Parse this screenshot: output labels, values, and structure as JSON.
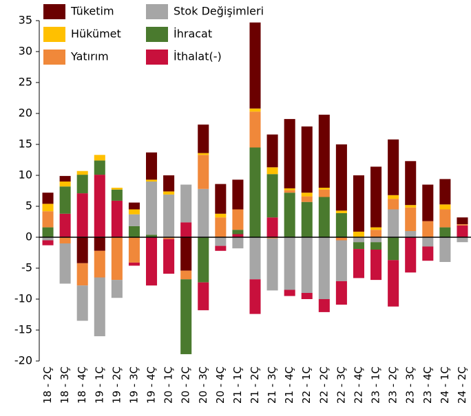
{
  "chart_data": {
    "type": "stacked_bar",
    "categories": [
      "18 - 2Ç",
      "18 - 3Ç",
      "18 - 4Ç",
      "19 - 1Ç",
      "19 - 2Ç",
      "19 - 3Ç",
      "19 - 4Ç",
      "20 - 1Ç",
      "20 - 2Ç",
      "20 - 3Ç",
      "20 - 4Ç",
      "21 - 1Ç",
      "21 - 2Ç",
      "21 - 3Ç",
      "21 - 4Ç",
      "22 - 1Ç",
      "22 - 2Ç",
      "22 - 3Ç",
      "22 - 4Ç",
      "23 - 1Ç",
      "23 - 2Ç",
      "23 - 3Ç",
      "23 - 4Ç",
      "24 - 1Ç",
      "24 - 2Ç"
    ],
    "series": [
      {
        "name": "Tüketim",
        "color": "#6b0000",
        "values": [
          1.8,
          0.9,
          -4.2,
          -2.2,
          0,
          1.1,
          4.4,
          2.6,
          -5.4,
          4.6,
          4.8,
          4.8,
          13.9,
          5.3,
          11.2,
          10.7,
          11.8,
          10.7,
          9.1,
          9.8,
          9.0,
          7.1,
          5.9,
          4.1,
          1.1
        ]
      },
      {
        "name": "Hükümet",
        "color": "#ffc000",
        "values": [
          1.2,
          0.8,
          0.6,
          0.9,
          0.3,
          0.8,
          0.3,
          0.5,
          0,
          0.3,
          0.6,
          0,
          0.5,
          1.1,
          0.3,
          0.6,
          0.3,
          0.4,
          0.9,
          0.4,
          0.6,
          0.4,
          0,
          0.8,
          0
        ]
      },
      {
        "name": "Yatırım",
        "color": "#f0883a",
        "values": [
          2.6,
          -1.0,
          -3.6,
          -4.3,
          -6.9,
          -4.1,
          0,
          -0.3,
          -1.4,
          5.5,
          3.2,
          3.3,
          5.8,
          -0.2,
          0.4,
          0.9,
          1.2,
          -0.5,
          0,
          1.2,
          1.7,
          3.8,
          2.6,
          2.9,
          0.2
        ]
      },
      {
        "name": "Stok Değişimleri",
        "color": "#a6a6a6",
        "values": [
          -0.5,
          -6.5,
          -5.7,
          -9.5,
          -2.9,
          1.9,
          8.6,
          6.9,
          6.1,
          7.8,
          -1.4,
          -1.8,
          -6.8,
          -8.4,
          -8.5,
          -9.0,
          -10.0,
          -6.6,
          -0.8,
          -0.8,
          4.5,
          1.0,
          -1.5,
          -4.0,
          -0.8
        ]
      },
      {
        "name": "İhracat",
        "color": "#4a7a2e",
        "values": [
          1.6,
          4.4,
          3.0,
          2.3,
          1.8,
          1.8,
          0.4,
          0,
          -12.1,
          -7.3,
          0,
          0.7,
          14.5,
          7.0,
          7.2,
          5.7,
          6.5,
          3.9,
          -1.1,
          -1.2,
          -3.7,
          0,
          0,
          1.6,
          0
        ]
      },
      {
        "name": "İthalat(-)",
        "color": "#c8103c",
        "values": [
          -0.8,
          3.8,
          7.1,
          10.1,
          5.9,
          -0.5,
          -7.8,
          -5.6,
          2.4,
          -4.5,
          -0.8,
          0.5,
          -5.6,
          3.2,
          -1.0,
          -1.0,
          -2.1,
          -3.8,
          -4.7,
          -4.9,
          -7.5,
          -5.7,
          -2.3,
          0,
          1.9
        ]
      }
    ],
    "ylim": [
      -20,
      35
    ],
    "yticks": [
      -20,
      -15,
      -10,
      -5,
      0,
      5,
      10,
      15,
      20,
      25,
      30,
      35
    ]
  }
}
